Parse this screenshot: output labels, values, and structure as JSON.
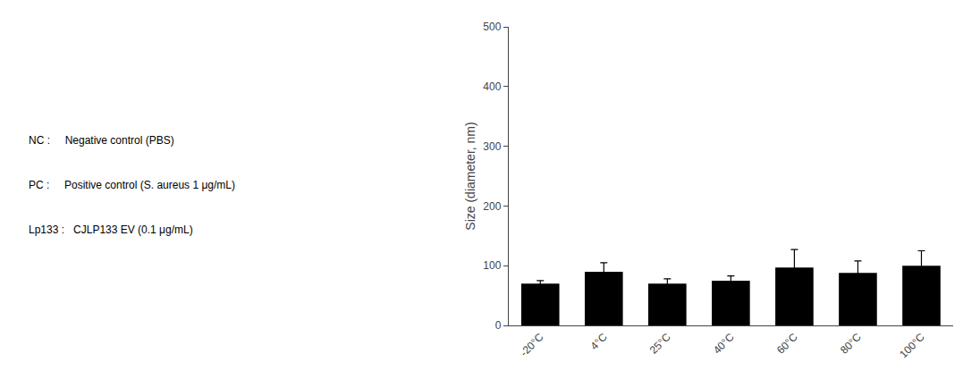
{
  "chart_data": {
    "type": "bar",
    "categories": [
      "-20°C",
      "4°C",
      "25°C",
      "40°C",
      "60°C",
      "80°C",
      "100°C"
    ],
    "values": [
      70,
      90,
      70,
      75,
      97,
      88,
      100
    ],
    "errors": [
      5,
      15,
      8,
      8,
      30,
      20,
      25
    ],
    "color": "#000000",
    "ylabel": "Size (diameter, nm)",
    "ylim": [
      0,
      500
    ],
    "yticks": [
      0,
      100,
      200,
      300,
      400,
      500
    ],
    "grid": false,
    "annotations": [
      "NC :     Negative control (PBS)",
      "PC :     Positive control (S. aureus 1 μg/mL)",
      "Lp133 :   CJLP133 EV (0.1 μg/mL)"
    ]
  }
}
